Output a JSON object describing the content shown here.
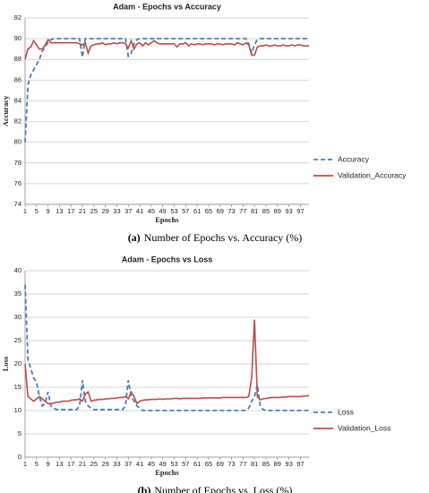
{
  "chart_data": [
    {
      "type": "line",
      "title": "Adam - Epochs vs Accuracy",
      "x_label": "Epochs",
      "y_label": "Accuracy",
      "caption_tag": "(a)",
      "caption": "Number of Epochs vs. Accuracy (%)",
      "x": [
        1,
        2,
        3,
        4,
        5,
        6,
        7,
        8,
        9,
        10,
        11,
        12,
        13,
        14,
        15,
        16,
        17,
        18,
        19,
        20,
        21,
        22,
        23,
        24,
        25,
        26,
        27,
        28,
        29,
        30,
        31,
        32,
        33,
        34,
        35,
        36,
        37,
        38,
        39,
        40,
        41,
        42,
        43,
        44,
        45,
        46,
        47,
        48,
        49,
        50,
        51,
        52,
        53,
        54,
        55,
        56,
        57,
        58,
        59,
        60,
        61,
        62,
        63,
        64,
        65,
        66,
        67,
        68,
        69,
        70,
        71,
        72,
        73,
        74,
        75,
        76,
        77,
        78,
        79,
        80,
        81,
        82,
        83,
        84,
        85,
        86,
        87,
        88,
        89,
        90,
        91,
        92,
        93,
        94,
        95,
        96,
        97,
        98,
        99,
        100
      ],
      "xlim": [
        1,
        100
      ],
      "xticks": [
        1,
        5,
        9,
        13,
        17,
        21,
        25,
        29,
        33,
        37,
        41,
        45,
        49,
        53,
        57,
        61,
        65,
        69,
        73,
        77,
        81,
        85,
        89,
        93,
        97
      ],
      "ylim": [
        74,
        92
      ],
      "yticks": [
        74,
        76,
        78,
        80,
        82,
        84,
        86,
        88,
        90,
        92
      ],
      "grid": true,
      "legend": "right",
      "series": [
        {
          "name": "Accuracy",
          "color": "#4a7ebb",
          "style": "dashed",
          "values": [
            80,
            85.5,
            86.5,
            87,
            87.5,
            88,
            88.8,
            89.2,
            89.6,
            89.9,
            90,
            90,
            90,
            90,
            90,
            90,
            90,
            90,
            90,
            90,
            88.2,
            90,
            90,
            90,
            90,
            90,
            90,
            90,
            90,
            90,
            90,
            90,
            90,
            90,
            90,
            90,
            88.3,
            88.6,
            89.5,
            89.9,
            90,
            90,
            90,
            90,
            90,
            90,
            90,
            90,
            90,
            90,
            90,
            90,
            90,
            90,
            90,
            90,
            90,
            90,
            90,
            90,
            90,
            90,
            90,
            90,
            90,
            90,
            90,
            90,
            90,
            90,
            90,
            90,
            90,
            90,
            90,
            90,
            90,
            90,
            89.5,
            88.6,
            89.4,
            89.9,
            90,
            90,
            90,
            90,
            90,
            90,
            90,
            90,
            90,
            90,
            90,
            90,
            90,
            90,
            90,
            90,
            90,
            90
          ]
        },
        {
          "name": "Validation_Accuracy",
          "color": "#be4b48",
          "style": "solid",
          "values": [
            88,
            89,
            89.2,
            89.8,
            89.4,
            89,
            89,
            89.4,
            89.9,
            89.6,
            89.6,
            89.6,
            89.6,
            89.6,
            89.6,
            89.6,
            89.6,
            89.6,
            89.6,
            89.5,
            89.4,
            89.6,
            88.6,
            89.3,
            89.4,
            89.5,
            89.5,
            89.6,
            89.4,
            89.5,
            89.5,
            89.6,
            89.5,
            89.6,
            89.6,
            89.5,
            89.1,
            89.8,
            89.0,
            89.5,
            89.6,
            89.3,
            89.6,
            89.4,
            89.6,
            89.8,
            89.6,
            89.5,
            89.5,
            89.5,
            89.5,
            89.5,
            89.5,
            89.2,
            89.5,
            89.5,
            89.6,
            89.3,
            89.5,
            89.4,
            89.5,
            89.5,
            89.4,
            89.5,
            89.5,
            89.5,
            89.4,
            89.5,
            89.5,
            89.4,
            89.5,
            89.5,
            89.5,
            89.4,
            89.6,
            89.5,
            89.4,
            89.6,
            89.4,
            88.4,
            88.4,
            89.2,
            89.3,
            89.3,
            89.4,
            89.3,
            89.3,
            89.4,
            89.3,
            89.3,
            89.4,
            89.3,
            89.3,
            89.4,
            89.3,
            89.4,
            89.4,
            89.3,
            89.3,
            89.3
          ]
        }
      ]
    },
    {
      "type": "line",
      "title": "Adam - Epochs vs Loss",
      "x_label": "Epochs",
      "y_label": "Loss",
      "caption_tag": "(b)",
      "caption": "Number of Epochs vs. Loss (%)",
      "x": [
        1,
        2,
        3,
        4,
        5,
        6,
        7,
        8,
        9,
        10,
        11,
        12,
        13,
        14,
        15,
        16,
        17,
        18,
        19,
        20,
        21,
        22,
        23,
        24,
        25,
        26,
        27,
        28,
        29,
        30,
        31,
        32,
        33,
        34,
        35,
        36,
        37,
        38,
        39,
        40,
        41,
        42,
        43,
        44,
        45,
        46,
        47,
        48,
        49,
        50,
        51,
        52,
        53,
        54,
        55,
        56,
        57,
        58,
        59,
        60,
        61,
        62,
        63,
        64,
        65,
        66,
        67,
        68,
        69,
        70,
        71,
        72,
        73,
        74,
        75,
        76,
        77,
        78,
        79,
        80,
        81,
        82,
        83,
        84,
        85,
        86,
        87,
        88,
        89,
        90,
        91,
        92,
        93,
        94,
        95,
        96,
        97,
        98,
        99,
        100
      ],
      "xlim": [
        1,
        100
      ],
      "xticks": [
        1,
        5,
        9,
        13,
        17,
        21,
        25,
        29,
        33,
        37,
        41,
        45,
        49,
        53,
        57,
        61,
        65,
        69,
        73,
        77,
        81,
        85,
        89,
        93,
        97
      ],
      "ylim": [
        0,
        40
      ],
      "yticks": [
        0,
        5,
        10,
        15,
        20,
        25,
        30,
        35,
        40
      ],
      "grid": true,
      "legend": "right",
      "series": [
        {
          "name": "Loss",
          "color": "#4a7ebb",
          "style": "dashed",
          "values": [
            37,
            21,
            19,
            17,
            16,
            13,
            11,
            11.5,
            14,
            11,
            10.5,
            10.2,
            10.2,
            10.2,
            10.2,
            10.2,
            10.2,
            10.2,
            10.2,
            11,
            16.5,
            12,
            11,
            10.5,
            10.2,
            10.2,
            10.2,
            10.2,
            10.2,
            10.2,
            10.2,
            10.2,
            10.2,
            10.2,
            10.2,
            11,
            16.5,
            13,
            12,
            11,
            10.5,
            10,
            10,
            10,
            10,
            10,
            10,
            10,
            10,
            10,
            10,
            10,
            10,
            10,
            10,
            10,
            10,
            10,
            10,
            10,
            10,
            10,
            10,
            10,
            10,
            10,
            10,
            10,
            10,
            10,
            10,
            10,
            10,
            10,
            10,
            10,
            10,
            10,
            10.5,
            12,
            13,
            15.5,
            11,
            10.2,
            10,
            10,
            10,
            10,
            10,
            10,
            10,
            10,
            10,
            10,
            10,
            10,
            10,
            10,
            10,
            10
          ]
        },
        {
          "name": "Validation_Loss",
          "color": "#be4b48",
          "style": "solid",
          "values": [
            20,
            13,
            12.5,
            12,
            12.5,
            13,
            12.5,
            12,
            11.5,
            11.5,
            11.6,
            11.8,
            11.8,
            12,
            12,
            12,
            12.2,
            12.3,
            12.3,
            12.5,
            12,
            13.5,
            14,
            12,
            12.2,
            12.3,
            12.4,
            12.4,
            12.5,
            12.5,
            12.6,
            12.6,
            12.7,
            12.8,
            12.8,
            13,
            12.5,
            14,
            13,
            11.5,
            12,
            12.2,
            12.3,
            12.3,
            12.4,
            12.4,
            12.4,
            12.5,
            12.4,
            12.5,
            12.5,
            12.5,
            12.6,
            12.6,
            12.5,
            12.6,
            12.6,
            12.6,
            12.6,
            12.6,
            12.6,
            12.6,
            12.7,
            12.7,
            12.7,
            12.7,
            12.7,
            12.7,
            12.7,
            12.8,
            12.8,
            12.8,
            12.8,
            12.8,
            12.8,
            12.8,
            12.8,
            12.8,
            13,
            17,
            29.5,
            13,
            12.3,
            12.5,
            12.6,
            12.7,
            12.8,
            12.8,
            12.8,
            12.8,
            12.9,
            12.9,
            13,
            13,
            13,
            13,
            13,
            13.1,
            13.1,
            13.2
          ]
        }
      ]
    }
  ]
}
